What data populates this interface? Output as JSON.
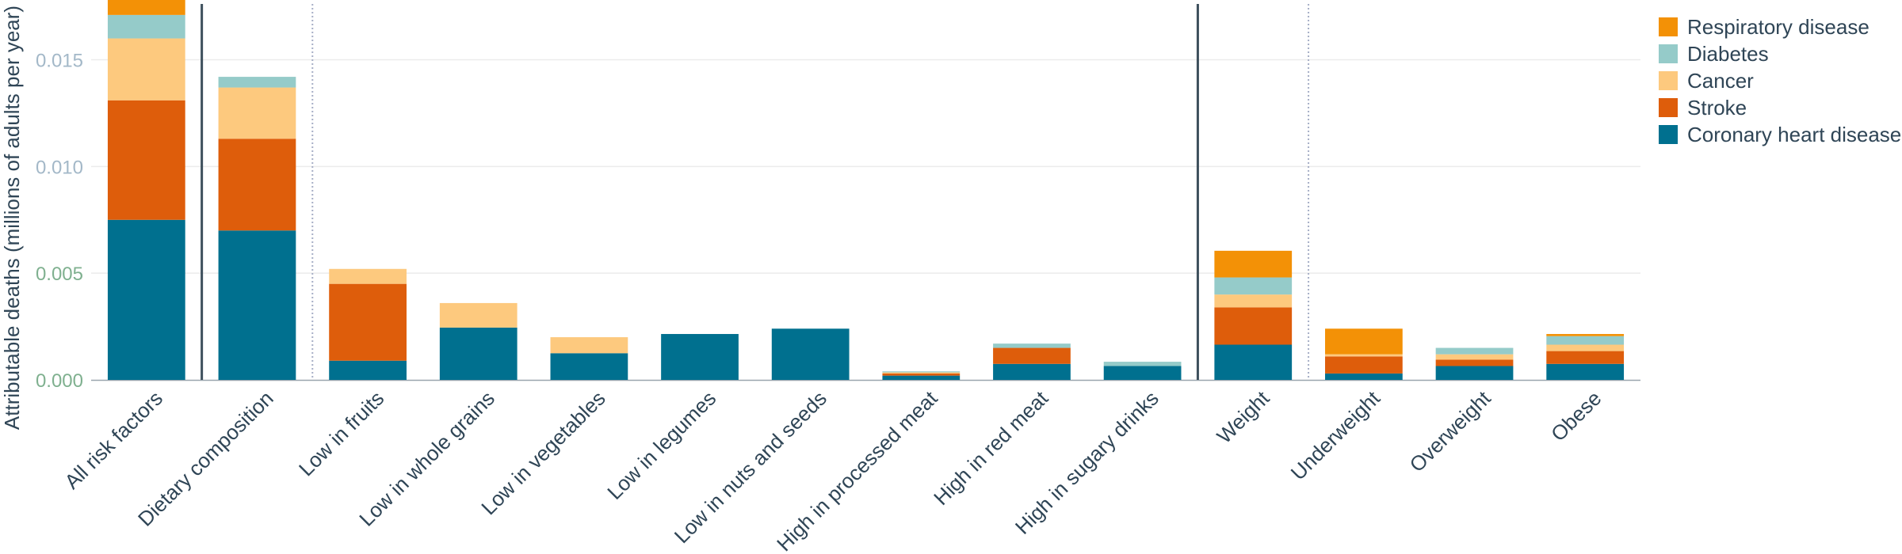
{
  "chart_data": {
    "type": "bar",
    "stacked": true,
    "ylabel": "Attributable deaths (millions of adults per year)",
    "xlabel": "",
    "ylim": [
      0,
      0.0178
    ],
    "yticks": [
      "0.000",
      "0.005",
      "0.010",
      "0.015"
    ],
    "ytick_values": [
      0,
      0.005,
      0.01,
      0.015
    ],
    "ytick_colors": [
      "#7fb08f",
      "#7fb08f",
      "#a3b8c8",
      "#a3b8c8"
    ],
    "grid": true,
    "legend_position": "top-right",
    "categories": [
      "All risk factors",
      "Dietary composition",
      "Low in fruits",
      "Low in whole grains",
      "Low in vegetables",
      "Low in legumes",
      "Low in nuts and seeds",
      "High in processed meat",
      "High in red meat",
      "High in sugary drinks",
      "Weight",
      "Underweight",
      "Overweight",
      "Obese"
    ],
    "separators": [
      {
        "after": 0,
        "style": "solid"
      },
      {
        "after": 1,
        "style": "dotted"
      },
      {
        "after": 9,
        "style": "solid"
      },
      {
        "after": 10,
        "style": "dotted"
      }
    ],
    "series": [
      {
        "name": "Coronary heart disease",
        "color": "#00708f",
        "values": [
          0.0075,
          0.007,
          0.0009,
          0.00245,
          0.00125,
          0.00215,
          0.0024,
          0.0002,
          0.00075,
          0.00065,
          0.00165,
          0.0003,
          0.00065,
          0.00075
        ]
      },
      {
        "name": "Stroke",
        "color": "#de5d0b",
        "values": [
          0.0056,
          0.0043,
          0.0036,
          0,
          0,
          0,
          0,
          0.0001,
          0.00075,
          0,
          0.00175,
          0.0008,
          0.0003,
          0.0006
        ]
      },
      {
        "name": "Cancer",
        "color": "#fdc97e",
        "values": [
          0.0029,
          0.0024,
          0.0007,
          0.00115,
          0.00075,
          0,
          0,
          5e-05,
          0,
          0,
          0.0006,
          0.0001,
          0.00025,
          0.0003
        ]
      },
      {
        "name": "Diabetes",
        "color": "#95cbc9",
        "values": [
          0.0011,
          0.0005,
          0,
          0,
          0,
          0,
          0,
          5e-05,
          0.0002,
          0.0002,
          0.0008,
          0,
          0.0003,
          0.0004
        ]
      },
      {
        "name": "Respiratory disease",
        "color": "#f39106",
        "values": [
          0.0012,
          0,
          0,
          0,
          0,
          0,
          0,
          0,
          0,
          0,
          0.00125,
          0.0012,
          0,
          0.0001
        ]
      }
    ]
  }
}
